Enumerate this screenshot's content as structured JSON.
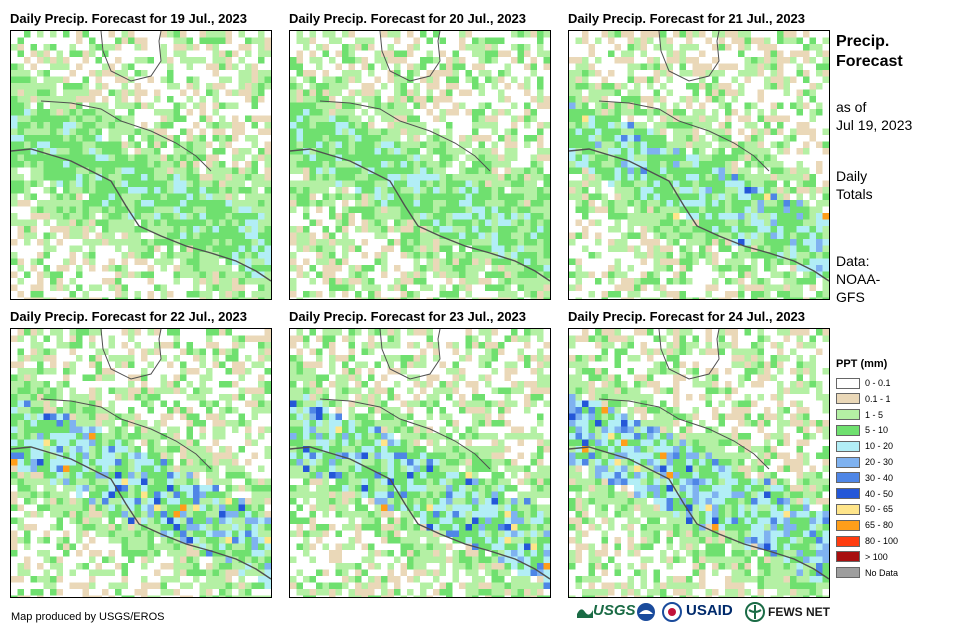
{
  "panels": [
    {
      "title": "Daily Precip. Forecast for 19 Jul., 2023"
    },
    {
      "title": "Daily Precip. Forecast for 20 Jul., 2023"
    },
    {
      "title": "Daily Precip. Forecast for 21 Jul., 2023"
    },
    {
      "title": "Daily Precip. Forecast for 22 Jul., 2023"
    },
    {
      "title": "Daily Precip. Forecast for 23 Jul., 2023"
    },
    {
      "title": "Daily Precip. Forecast for 24 Jul., 2023"
    }
  ],
  "sidebar": {
    "title_line1": "Precip.",
    "title_line2": "Forecast",
    "asof_line1": "as of",
    "asof_line2": "Jul 19, 2023",
    "daily_line1": "Daily",
    "daily_line2": "Totals",
    "data_line1": "Data:",
    "data_line2": "NOAA-",
    "data_line3": "GFS"
  },
  "legend": {
    "title": "PPT (mm)",
    "items": [
      {
        "label": "0 - 0.1",
        "color": "#ffffff"
      },
      {
        "label": "0.1 - 1",
        "color": "#ead8b8"
      },
      {
        "label": "1 - 5",
        "color": "#b4f0a4"
      },
      {
        "label": "5 - 10",
        "color": "#6fe06f"
      },
      {
        "label": "10 - 20",
        "color": "#b2eef6"
      },
      {
        "label": "20 - 30",
        "color": "#7fb2f0"
      },
      {
        "label": "30 - 40",
        "color": "#4f86e6"
      },
      {
        "label": "40 - 50",
        "color": "#2457d8"
      },
      {
        "label": "50 - 65",
        "color": "#ffe58a"
      },
      {
        "label": "65 - 80",
        "color": "#ff9e1a"
      },
      {
        "label": "80 - 100",
        "color": "#ff3c0f"
      },
      {
        "label": "> 100",
        "color": "#a80f0f"
      },
      {
        "label": "No Data",
        "color": "#9e9e9e"
      }
    ]
  },
  "credit": "Map produced by USGS/EROS",
  "logos": {
    "usgs": "USGS",
    "usaid": "USAID",
    "fewsnet": "FEWS NET"
  },
  "colors": {
    "border": "#505050",
    "usgs_green": "#1a6b45",
    "usaid_blue": "#002a6c",
    "usaid_red": "#c2113a",
    "noaa_blue": "#1a4b9c"
  }
}
